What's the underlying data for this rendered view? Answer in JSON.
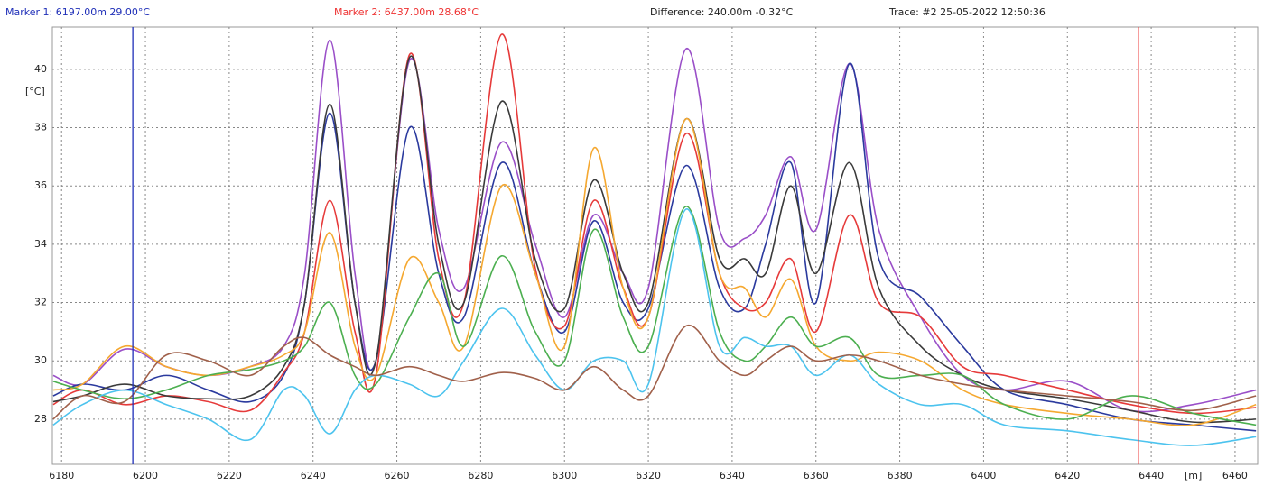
{
  "chart_data": {
    "type": "line",
    "markers": [
      {
        "label": "Marker 1: 6197.00m 29.00°C",
        "x": 6197,
        "color": "#1f2fb8"
      },
      {
        "label": "Marker 2: 6437.00m 28.68°C",
        "x": 6437,
        "color": "#ee3333"
      }
    ],
    "difference": "Difference: 240.00m -0.32°C",
    "trace": "Trace: #2 25-05-2022 12:50:36",
    "xlabel": "[m]",
    "ylabel": "[°C]",
    "xlim": [
      6177.8,
      6465.4
    ],
    "ylim": [
      26.45,
      41.45
    ],
    "xticks": [
      6180,
      6200,
      6220,
      6240,
      6260,
      6280,
      6300,
      6320,
      6340,
      6360,
      6380,
      6400,
      6420,
      6440,
      6460
    ],
    "yticks": [
      28,
      30,
      32,
      34,
      36,
      38,
      40
    ],
    "grid": true,
    "x": [
      6178,
      6185,
      6195,
      6205,
      6215,
      6225,
      6233,
      6238,
      6244,
      6250,
      6255,
      6263,
      6270,
      6276,
      6285,
      6293,
      6300,
      6307,
      6314,
      6320,
      6329,
      6337,
      6343,
      6348,
      6354,
      6360,
      6368,
      6375,
      6385,
      6395,
      6405,
      6420,
      6435,
      6450,
      6465
    ],
    "series": [
      {
        "color": "#9a4fc8",
        "values": [
          29.5,
          29.2,
          30.4,
          29.8,
          29.5,
          29.8,
          30.5,
          33,
          41,
          33,
          30,
          40.3,
          34.5,
          32.5,
          37.5,
          34,
          31.5,
          35,
          33,
          32.5,
          40.7,
          34.5,
          34.2,
          35,
          37,
          34.5,
          40.2,
          34.5,
          31.5,
          29.5,
          29,
          29.3,
          28.3,
          28.5,
          29
        ]
      },
      {
        "color": "#2b3a9e",
        "values": [
          28.8,
          29.2,
          29,
          29.5,
          29,
          28.6,
          29.5,
          32,
          38.5,
          32,
          30,
          38,
          33,
          31.5,
          36.8,
          33,
          31,
          34.8,
          32,
          31.8,
          36.7,
          32.5,
          31.8,
          34,
          36.8,
          32,
          40.2,
          33.5,
          32.2,
          30.5,
          29,
          28.5,
          28,
          27.8,
          27.6
        ]
      },
      {
        "color": "#e63a3a",
        "values": [
          28.5,
          29,
          28.5,
          28.8,
          28.6,
          28.3,
          29.6,
          31,
          35.5,
          31,
          29.5,
          40.5,
          33.5,
          32,
          41.2,
          33.2,
          31.2,
          35.5,
          32.5,
          31.5,
          37.8,
          33,
          31.8,
          32,
          33.5,
          31,
          35,
          32,
          31.5,
          29.8,
          29.5,
          29,
          28.5,
          28.2,
          28.4
        ]
      },
      {
        "color": "#3a3a3a",
        "values": [
          28.6,
          28.8,
          29.2,
          28.8,
          28.7,
          28.8,
          29.8,
          32,
          38.8,
          32,
          30,
          40.4,
          34,
          32,
          38.9,
          33.5,
          31.8,
          36.2,
          33,
          32,
          38.3,
          33.5,
          33.5,
          33,
          36,
          33,
          36.8,
          32.5,
          30.5,
          29.5,
          29,
          28.7,
          28.3,
          27.9,
          28
        ]
      },
      {
        "color": "#f5a830",
        "values": [
          29,
          29.2,
          30.5,
          29.8,
          29.5,
          29.8,
          30.2,
          31,
          34.4,
          30.5,
          29.5,
          33.5,
          32,
          30.5,
          36,
          33,
          30.5,
          37.3,
          32.5,
          31.5,
          38.3,
          33,
          32.5,
          31.5,
          32.8,
          30.5,
          30,
          30.3,
          30,
          29,
          28.5,
          28.2,
          28,
          27.8,
          28.5
        ]
      },
      {
        "color": "#4caf50",
        "values": [
          29.3,
          29,
          28.7,
          29,
          29.5,
          29.7,
          30,
          30.5,
          32,
          29.5,
          29.2,
          31.5,
          33,
          30.5,
          33.6,
          31,
          30,
          34.5,
          31.5,
          30.5,
          35.3,
          31,
          30,
          30.5,
          31.5,
          30.5,
          30.8,
          29.5,
          29.5,
          29.5,
          28.5,
          28,
          28.8,
          28.2,
          27.8
        ]
      },
      {
        "color": "#4cc3ee",
        "values": [
          27.8,
          28.5,
          29,
          28.5,
          28,
          27.3,
          29,
          28.8,
          27.5,
          29,
          29.5,
          29.2,
          28.8,
          30,
          31.8,
          30.2,
          29,
          30,
          30,
          29.2,
          35.2,
          30.5,
          30.8,
          30.5,
          30.5,
          29.5,
          30.2,
          29.2,
          28.5,
          28.5,
          27.8,
          27.6,
          27.3,
          27.1,
          27.4
        ]
      },
      {
        "color": "#a0604a",
        "values": [
          28,
          28.8,
          28.6,
          30.2,
          30,
          29.5,
          30.5,
          30.8,
          30.2,
          29.8,
          29.5,
          29.8,
          29.5,
          29.3,
          29.6,
          29.4,
          29,
          29.8,
          29,
          28.8,
          31.2,
          30,
          29.5,
          30,
          30.5,
          30,
          30.2,
          30,
          29.5,
          29.2,
          29,
          28.8,
          28.6,
          28.3,
          28.8
        ]
      }
    ]
  }
}
